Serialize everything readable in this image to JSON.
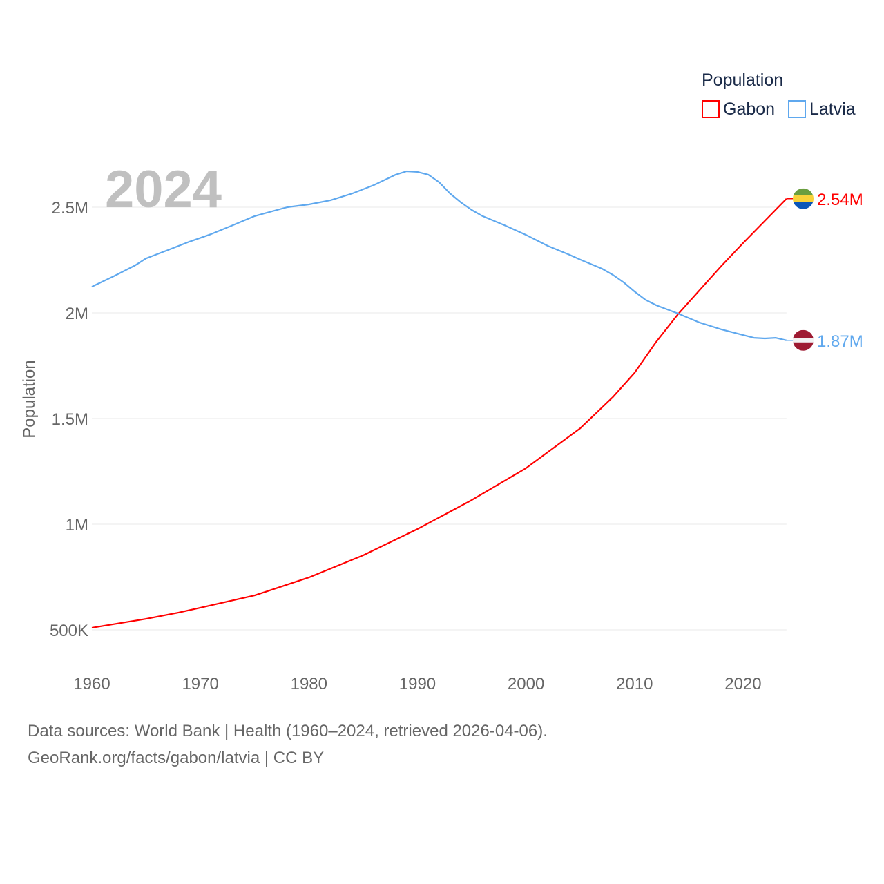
{
  "chart_data": {
    "type": "line",
    "title": "",
    "year_label": "2024",
    "xlabel": "",
    "ylabel": "Population",
    "xlim": [
      1960,
      2024
    ],
    "ylim": [
      500000,
      2500000
    ],
    "x_ticks": [
      1960,
      1970,
      1980,
      1990,
      2000,
      2010,
      2020
    ],
    "y_ticks": [
      {
        "value": 500000,
        "label": "500K"
      },
      {
        "value": 1000000,
        "label": "1M"
      },
      {
        "value": 1500000,
        "label": "1.5M"
      },
      {
        "value": 2000000,
        "label": "2M"
      },
      {
        "value": 2500000,
        "label": "2.5M"
      }
    ],
    "legend": {
      "title": "Population",
      "placement": "top-right"
    },
    "series": [
      {
        "name": "Gabon",
        "color": "#ff0000",
        "end_label": "2.54M",
        "flag": "gabon-flag",
        "points": [
          [
            1960,
            510000
          ],
          [
            1965,
            552000
          ],
          [
            1968,
            582000
          ],
          [
            1970,
            605000
          ],
          [
            1975,
            663000
          ],
          [
            1980,
            748000
          ],
          [
            1985,
            853000
          ],
          [
            1990,
            977000
          ],
          [
            1995,
            1114000
          ],
          [
            2000,
            1265000
          ],
          [
            2005,
            1454000
          ],
          [
            2008,
            1601000
          ],
          [
            2010,
            1716000
          ],
          [
            2012,
            1863000
          ],
          [
            2014,
            1993000
          ],
          [
            2016,
            2108000
          ],
          [
            2018,
            2222000
          ],
          [
            2020,
            2330000
          ],
          [
            2022,
            2435000
          ],
          [
            2024,
            2540000
          ]
        ]
      },
      {
        "name": "Latvia",
        "color": "#5fa8ee",
        "end_label": "1.87M",
        "flag": "latvia-flag",
        "points": [
          [
            1960,
            2124000
          ],
          [
            1962,
            2173000
          ],
          [
            1964,
            2225000
          ],
          [
            1965,
            2258000
          ],
          [
            1967,
            2297000
          ],
          [
            1969,
            2337000
          ],
          [
            1971,
            2373000
          ],
          [
            1973,
            2415000
          ],
          [
            1975,
            2458000
          ],
          [
            1978,
            2500000
          ],
          [
            1980,
            2513000
          ],
          [
            1982,
            2533000
          ],
          [
            1984,
            2565000
          ],
          [
            1986,
            2605000
          ],
          [
            1988,
            2654000
          ],
          [
            1989,
            2670000
          ],
          [
            1990,
            2667000
          ],
          [
            1991,
            2654000
          ],
          [
            1992,
            2618000
          ],
          [
            1993,
            2565000
          ],
          [
            1994,
            2523000
          ],
          [
            1995,
            2487000
          ],
          [
            1996,
            2458000
          ],
          [
            1998,
            2415000
          ],
          [
            2000,
            2369000
          ],
          [
            2002,
            2317000
          ],
          [
            2004,
            2275000
          ],
          [
            2005,
            2252000
          ],
          [
            2007,
            2209000
          ],
          [
            2008,
            2180000
          ],
          [
            2009,
            2144000
          ],
          [
            2010,
            2101000
          ],
          [
            2011,
            2062000
          ],
          [
            2012,
            2036000
          ],
          [
            2014,
            1997000
          ],
          [
            2016,
            1954000
          ],
          [
            2018,
            1922000
          ],
          [
            2020,
            1895000
          ],
          [
            2021,
            1882000
          ],
          [
            2022,
            1879000
          ],
          [
            2023,
            1882000
          ],
          [
            2024,
            1870000
          ]
        ]
      }
    ]
  },
  "footer": {
    "sources": "Data sources: World Bank | Health (1960–2024, retrieved 2026-04-06).",
    "credit": "GeoRank.org/facts/gabon/latvia | CC BY"
  }
}
